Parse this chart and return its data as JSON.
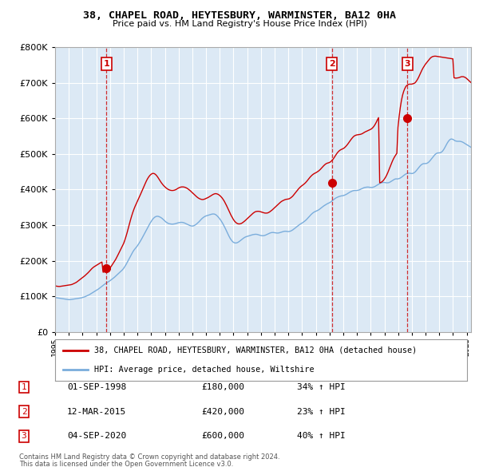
{
  "title": "38, CHAPEL ROAD, HEYTESBURY, WARMINSTER, BA12 0HA",
  "subtitle": "Price paid vs. HM Land Registry's House Price Index (HPI)",
  "footer1": "Contains HM Land Registry data © Crown copyright and database right 2024.",
  "footer2": "This data is licensed under the Open Government Licence v3.0.",
  "legend_line1": "38, CHAPEL ROAD, HEYTESBURY, WARMINSTER, BA12 0HA (detached house)",
  "legend_line2": "HPI: Average price, detached house, Wiltshire",
  "sales": [
    {
      "label": "1",
      "date_str": "01-SEP-1998",
      "price": 180000,
      "pct": "34%",
      "year": 1998.75
    },
    {
      "label": "2",
      "date_str": "12-MAR-2015",
      "price": 420000,
      "pct": "23%",
      "year": 2015.17
    },
    {
      "label": "3",
      "date_str": "04-SEP-2020",
      "price": 600000,
      "pct": "40%",
      "year": 2020.67
    }
  ],
  "table_rows": [
    [
      "1",
      "01-SEP-1998",
      "£180,000",
      "34% ↑ HPI"
    ],
    [
      "2",
      "12-MAR-2015",
      "£420,000",
      "23% ↑ HPI"
    ],
    [
      "3",
      "04-SEP-2020",
      "£600,000",
      "40% ↑ HPI"
    ]
  ],
  "red_line_color": "#cc0000",
  "blue_line_color": "#7aaddc",
  "chart_bg_color": "#dce9f5",
  "background_color": "#ffffff",
  "grid_color": "#ffffff",
  "ylim": [
    0,
    800000
  ],
  "xlim_start": 1995.0,
  "xlim_end": 2025.3,
  "hpi_data_monthly": {
    "start_year": 1995.0,
    "step": 0.0833,
    "values": [
      97000,
      96500,
      96000,
      95500,
      95000,
      94500,
      94000,
      93500,
      93000,
      92500,
      92000,
      91500,
      91000,
      91000,
      91500,
      92000,
      92500,
      93000,
      93500,
      94000,
      94500,
      95000,
      95500,
      96000,
      97000,
      98000,
      99000,
      100500,
      102000,
      103500,
      105000,
      107000,
      109000,
      111000,
      113000,
      115000,
      117000,
      119000,
      121000,
      123500,
      126000,
      128500,
      131000,
      133500,
      136000,
      138000,
      140000,
      142000,
      144000,
      146500,
      149000,
      151500,
      154000,
      157000,
      160000,
      163000,
      166000,
      169000,
      172000,
      175000,
      179000,
      184000,
      189000,
      195000,
      201000,
      207000,
      213000,
      219000,
      225000,
      230000,
      234000,
      238000,
      242000,
      247000,
      252000,
      257500,
      263000,
      269000,
      275000,
      281000,
      287000,
      293000,
      299000,
      305000,
      310000,
      315000,
      319000,
      322000,
      324000,
      325000,
      325000,
      324000,
      322500,
      320500,
      318000,
      315000,
      312000,
      309000,
      307000,
      305000,
      304000,
      303500,
      303000,
      303000,
      303500,
      304000,
      305000,
      306000,
      307000,
      307500,
      308000,
      308000,
      307500,
      306500,
      305000,
      303500,
      302000,
      300500,
      299000,
      298000,
      297500,
      298000,
      299500,
      301500,
      304000,
      307000,
      310000,
      313500,
      317000,
      320000,
      322500,
      324500,
      326000,
      327000,
      328000,
      329000,
      330000,
      331000,
      331500,
      331500,
      330500,
      328500,
      325500,
      322000,
      318000,
      313500,
      308500,
      303000,
      297000,
      290500,
      283500,
      276500,
      270000,
      264000,
      259000,
      255000,
      252000,
      250500,
      250000,
      250500,
      252000,
      254000,
      256500,
      259000,
      261500,
      264000,
      266000,
      267500,
      268500,
      269500,
      270500,
      271500,
      272500,
      273500,
      274000,
      274500,
      274500,
      274000,
      273000,
      272000,
      271000,
      270500,
      270500,
      271000,
      272000,
      273500,
      275000,
      276500,
      278000,
      279000,
      279500,
      279500,
      279000,
      278500,
      278000,
      278000,
      278500,
      279500,
      280500,
      281500,
      282500,
      283000,
      283000,
      282500,
      282000,
      282500,
      283500,
      285000,
      287000,
      289500,
      292000,
      294500,
      297000,
      299500,
      302000,
      304000,
      306000,
      308000,
      310500,
      313000,
      316000,
      319500,
      323000,
      326500,
      330000,
      333000,
      335500,
      337500,
      339000,
      340500,
      342000,
      344000,
      346500,
      349000,
      351500,
      354000,
      356000,
      358000,
      360000,
      361500,
      363000,
      365000,
      367500,
      370000,
      372500,
      375000,
      377000,
      378500,
      380000,
      381000,
      382000,
      382500,
      383000,
      384000,
      385500,
      387000,
      389000,
      391000,
      393000,
      394500,
      396000,
      397000,
      397500,
      397500,
      397500,
      398000,
      399000,
      400500,
      402000,
      403500,
      405000,
      406000,
      406500,
      407000,
      407000,
      406500,
      406000,
      406000,
      406500,
      407500,
      409000,
      411000,
      413000,
      415000,
      417000,
      418500,
      419500,
      420000,
      420000,
      419500,
      419000,
      419000,
      419500,
      421000,
      423000,
      425000,
      427000,
      429000,
      430000,
      430000,
      430000,
      431000,
      432500,
      434500,
      437000,
      439500,
      442000,
      444000,
      445500,
      446000,
      446000,
      445500,
      445000,
      445500,
      447000,
      449500,
      453000,
      457000,
      461000,
      465000,
      468500,
      471000,
      472500,
      473000,
      473000,
      473500,
      475000,
      477500,
      481000,
      485000,
      489000,
      493000,
      497000,
      500000,
      502000,
      503000,
      503000,
      503500,
      505000,
      508000,
      512500,
      518000,
      524000,
      530000,
      535000,
      539000,
      541500,
      542000,
      541000,
      539000,
      537000,
      536000,
      535500,
      535500,
      535500,
      535000,
      534000,
      532500,
      530500,
      528500,
      526500,
      524500,
      522500,
      520500,
      518500,
      516500,
      514500,
      512500,
      510500,
      508500,
      507000,
      505500,
      504000,
      503000,
      502000,
      501500,
      501000,
      501000,
      501500,
      502000,
      502500,
      503000,
      503000,
      503000
    ]
  },
  "red_line_monthly": {
    "start_year": 1995.0,
    "step": 0.0833,
    "values": [
      130000,
      129000,
      128500,
      128000,
      128000,
      128500,
      129000,
      129500,
      130000,
      130500,
      131000,
      131500,
      132000,
      132500,
      133000,
      134000,
      135500,
      137000,
      138500,
      140500,
      143000,
      145500,
      148000,
      150500,
      153000,
      155500,
      158000,
      161000,
      164000,
      167000,
      170500,
      174000,
      177500,
      180500,
      183000,
      185000,
      187000,
      189000,
      191000,
      193000,
      195000,
      196500,
      168000,
      169000,
      170000,
      172000,
      174500,
      177000,
      180000,
      184000,
      189000,
      194000,
      199000,
      204000,
      210000,
      216500,
      223000,
      229500,
      236000,
      242000,
      249000,
      258000,
      268000,
      279000,
      291000,
      303000,
      315000,
      326000,
      336000,
      345000,
      353000,
      360000,
      367000,
      374000,
      381000,
      388500,
      396000,
      403500,
      411000,
      418000,
      425000,
      431000,
      436000,
      440000,
      443000,
      445000,
      445500,
      444500,
      442000,
      438500,
      434000,
      429000,
      424000,
      419000,
      415000,
      411000,
      408000,
      405000,
      402500,
      400500,
      399000,
      398000,
      397500,
      397500,
      398000,
      399000,
      400500,
      402500,
      404500,
      406000,
      407000,
      407500,
      407500,
      407000,
      406000,
      404500,
      402500,
      400000,
      397500,
      394500,
      391500,
      388500,
      385500,
      382500,
      379500,
      377000,
      375000,
      373500,
      372500,
      372000,
      372500,
      373500,
      375000,
      376500,
      378000,
      380000,
      382000,
      384000,
      386000,
      387500,
      388500,
      388500,
      387500,
      386000,
      383500,
      380500,
      377000,
      372500,
      367500,
      361500,
      355000,
      348000,
      341000,
      334000,
      327500,
      321500,
      316000,
      311500,
      308000,
      305500,
      304000,
      303500,
      304000,
      305000,
      307000,
      309500,
      312000,
      315000,
      318000,
      321000,
      324000,
      327000,
      330000,
      333000,
      335500,
      337500,
      338500,
      339000,
      339000,
      338500,
      337500,
      336500,
      335500,
      334500,
      334000,
      334000,
      334500,
      336000,
      338000,
      340500,
      343000,
      346000,
      349000,
      352000,
      355000,
      358000,
      361000,
      364000,
      366500,
      368500,
      370000,
      371500,
      372500,
      373000,
      373500,
      374500,
      376500,
      379000,
      382000,
      386000,
      390000,
      394000,
      398000,
      402000,
      405500,
      408500,
      411000,
      413500,
      416000,
      419000,
      422500,
      426500,
      430500,
      434500,
      438000,
      441000,
      443500,
      445500,
      447000,
      449000,
      451000,
      453500,
      456500,
      460000,
      463500,
      467000,
      470000,
      472500,
      474000,
      475000,
      476000,
      478000,
      481000,
      484500,
      489000,
      494000,
      499000,
      503500,
      507000,
      510000,
      512000,
      513500,
      515000,
      517000,
      520000,
      523500,
      527500,
      532000,
      536500,
      541000,
      545000,
      548500,
      551000,
      552500,
      553500,
      554000,
      554500,
      555000,
      556000,
      557500,
      559500,
      561500,
      563000,
      564500,
      566000,
      567500,
      569000,
      571000,
      574000,
      578000,
      583000,
      589000,
      596000,
      602000,
      419000,
      420000,
      422000,
      425000,
      429000,
      434000,
      440000,
      447000,
      455000,
      463000,
      471000,
      479000,
      486000,
      492000,
      497000,
      502000,
      575000,
      605000,
      630000,
      650000,
      665000,
      676000,
      684000,
      690000,
      693000,
      695000,
      696000,
      696000,
      696000,
      697000,
      698000,
      700000,
      704000,
      709000,
      715000,
      722000,
      729000,
      736000,
      742000,
      747000,
      752000,
      756000,
      760000,
      764000,
      768000,
      771000,
      773000,
      774000,
      774500,
      774500,
      774000,
      773500,
      773000,
      772500,
      772000,
      771500,
      771000,
      770500,
      770000,
      769500,
      769000,
      768500,
      768000,
      767500,
      767000,
      714000,
      713000,
      713000,
      713500,
      714000,
      715000,
      716500,
      717000,
      717000,
      716000,
      714500,
      712000,
      709000,
      706000,
      703000,
      700000,
      697000,
      694000,
      691000,
      688000,
      685000,
      683000,
      681000,
      679000,
      678000,
      677500,
      677000,
      677000,
      677500,
      678000,
      679000,
      680000,
      680500,
      681000,
      681000
    ]
  }
}
